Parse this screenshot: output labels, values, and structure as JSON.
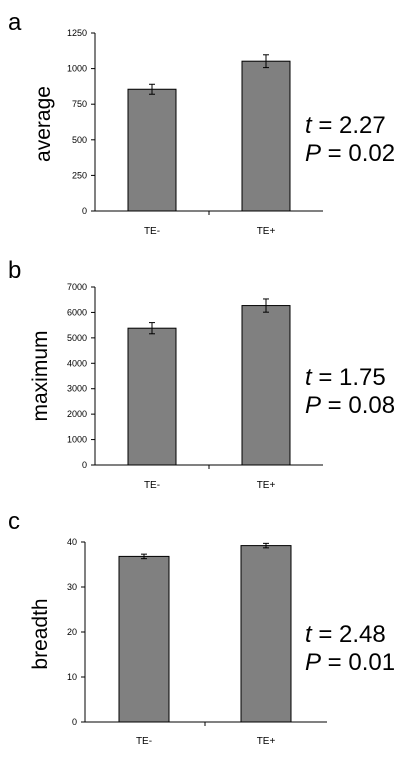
{
  "chart_data": [
    {
      "type": "bar",
      "panel_label": "a",
      "categories": [
        "TE-",
        "TE+"
      ],
      "values": [
        855,
        1052
      ],
      "errors": [
        35,
        45
      ],
      "ylabel": "average",
      "ylim": [
        0,
        1250
      ],
      "yticks": [
        "0",
        "250",
        "500",
        "750",
        "1000",
        "1250"
      ],
      "stat_t_label": "t",
      "stat_t_value": " = 2.27",
      "stat_p_label": "P",
      "stat_p_value": " = 0.02",
      "bar_color": "#808080",
      "grid": false
    },
    {
      "type": "bar",
      "panel_label": "b",
      "categories": [
        "TE-",
        "TE+"
      ],
      "values": [
        5380,
        6270
      ],
      "errors": [
        220,
        260
      ],
      "ylabel": "maximum",
      "ylim": [
        0,
        7000
      ],
      "yticks": [
        "0",
        "1000",
        "2000",
        "3000",
        "4000",
        "5000",
        "6000",
        "7000"
      ],
      "stat_t_label": "t",
      "stat_t_value": " = 1.75",
      "stat_p_label": "P",
      "stat_p_value": " = 0.08",
      "bar_color": "#808080",
      "grid": false
    },
    {
      "type": "bar",
      "panel_label": "c",
      "categories": [
        "TE-",
        "TE+"
      ],
      "values": [
        36.8,
        39.2
      ],
      "errors": [
        0.5,
        0.5
      ],
      "ylabel": "breadth",
      "ylim": [
        0,
        40
      ],
      "yticks": [
        "0",
        "10",
        "20",
        "30",
        "40"
      ],
      "stat_t_label": "t",
      "stat_t_value": " = 2.48",
      "stat_p_label": "P",
      "stat_p_value": " = 0.01",
      "bar_color": "#808080",
      "grid": false
    }
  ]
}
